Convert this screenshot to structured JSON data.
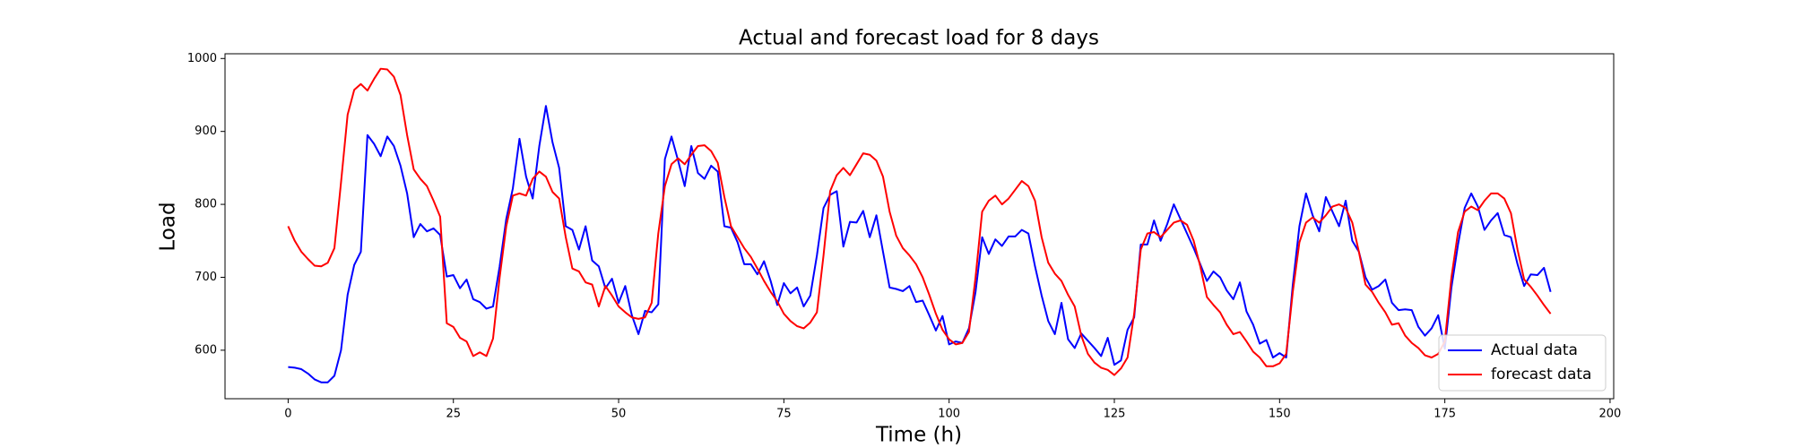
{
  "chart_data": {
    "type": "line",
    "title": "Actual and forecast load for 8 days",
    "xlabel": "Time (h)",
    "ylabel": "Load",
    "xlim": [
      -9.55,
      200.55
    ],
    "ylim": [
      533.5,
      1006.5
    ],
    "xticks": [
      0,
      25,
      50,
      75,
      100,
      125,
      150,
      175,
      200
    ],
    "yticks": [
      600,
      700,
      800,
      900,
      1000
    ],
    "grid": false,
    "legend": "lower right",
    "x": [
      0,
      1,
      2,
      3,
      4,
      5,
      6,
      7,
      8,
      9,
      10,
      11,
      12,
      13,
      14,
      15,
      16,
      17,
      18,
      19,
      20,
      21,
      22,
      23,
      24,
      25,
      26,
      27,
      28,
      29,
      30,
      31,
      32,
      33,
      34,
      35,
      36,
      37,
      38,
      39,
      40,
      41,
      42,
      43,
      44,
      45,
      46,
      47,
      48,
      49,
      50,
      51,
      52,
      53,
      54,
      55,
      56,
      57,
      58,
      59,
      60,
      61,
      62,
      63,
      64,
      65,
      66,
      67,
      68,
      69,
      70,
      71,
      72,
      73,
      74,
      75,
      76,
      77,
      78,
      79,
      80,
      81,
      82,
      83,
      84,
      85,
      86,
      87,
      88,
      89,
      90,
      91,
      92,
      93,
      94,
      95,
      96,
      97,
      98,
      99,
      100,
      101,
      102,
      103,
      104,
      105,
      106,
      107,
      108,
      109,
      110,
      111,
      112,
      113,
      114,
      115,
      116,
      117,
      118,
      119,
      120,
      121,
      122,
      123,
      124,
      125,
      126,
      127,
      128,
      129,
      130,
      131,
      132,
      133,
      134,
      135,
      136,
      137,
      138,
      139,
      140,
      141,
      142,
      143,
      144,
      145,
      146,
      147,
      148,
      149,
      150,
      151,
      152,
      153,
      154,
      155,
      156,
      157,
      158,
      159,
      160,
      161,
      162,
      163,
      164,
      165,
      166,
      167,
      168,
      169,
      170,
      171,
      172,
      173,
      174,
      175,
      176,
      177,
      178,
      179,
      180,
      181,
      182,
      183,
      184,
      185,
      186,
      187,
      188,
      189,
      190,
      191
    ],
    "series": [
      {
        "name": "Actual data",
        "color": "#0000ff",
        "values": [
          577,
          576,
          574,
          568,
          560,
          556,
          556,
          565,
          600,
          676,
          717,
          735,
          895,
          883,
          866,
          893,
          880,
          853,
          815,
          755,
          773,
          763,
          767,
          758,
          701,
          703,
          685,
          697,
          670,
          666,
          657,
          660,
          715,
          780,
          822,
          890,
          838,
          808,
          880,
          935,
          885,
          850,
          770,
          765,
          738,
          770,
          723,
          715,
          685,
          698,
          665,
          688,
          648,
          622,
          654,
          652,
          663,
          862,
          893,
          860,
          825,
          880,
          843,
          835,
          853,
          845,
          770,
          768,
          748,
          718,
          718,
          704,
          722,
          695,
          662,
          692,
          678,
          686,
          660,
          675,
          730,
          795,
          813,
          818,
          742,
          776,
          775,
          791,
          755,
          785,
          735,
          686,
          684,
          681,
          688,
          666,
          668,
          648,
          627,
          647,
          608,
          612,
          610,
          630,
          680,
          755,
          732,
          752,
          743,
          756,
          756,
          765,
          760,
          715,
          675,
          640,
          622,
          665,
          615,
          603,
          623,
          613,
          603,
          592,
          617,
          580,
          586,
          628,
          645,
          745,
          745,
          778,
          750,
          773,
          800,
          780,
          760,
          740,
          718,
          695,
          708,
          700,
          682,
          670,
          693,
          653,
          635,
          609,
          614,
          590,
          596,
          590,
          690,
          770,
          815,
          785,
          763,
          810,
          790,
          770,
          805,
          750,
          735,
          700,
          683,
          688,
          697,
          665,
          655,
          656,
          655,
          632,
          620,
          630,
          648,
          602,
          686,
          745,
          795,
          815,
          797,
          765,
          778,
          788,
          758,
          755,
          718,
          688,
          704,
          703,
          713,
          680
        ]
      },
      {
        "name": "forecast data",
        "color": "#ff0000",
        "values": [
          770,
          750,
          735,
          725,
          716,
          715,
          720,
          740,
          830,
          923,
          957,
          965,
          956,
          972,
          986,
          985,
          975,
          950,
          895,
          848,
          835,
          825,
          805,
          783,
          637,
          632,
          617,
          612,
          592,
          597,
          592,
          616,
          700,
          770,
          812,
          815,
          812,
          835,
          845,
          838,
          817,
          808,
          755,
          712,
          708,
          693,
          690,
          660,
          688,
          675,
          660,
          652,
          645,
          643,
          645,
          665,
          760,
          825,
          855,
          863,
          855,
          868,
          880,
          881,
          873,
          857,
          810,
          770,
          755,
          740,
          728,
          712,
          695,
          680,
          667,
          650,
          640,
          633,
          630,
          638,
          652,
          730,
          818,
          840,
          850,
          840,
          855,
          870,
          868,
          860,
          838,
          790,
          757,
          740,
          730,
          718,
          700,
          676,
          650,
          628,
          615,
          608,
          610,
          625,
          700,
          790,
          805,
          812,
          800,
          808,
          820,
          832,
          825,
          805,
          755,
          720,
          705,
          695,
          676,
          660,
          620,
          595,
          583,
          576,
          573,
          566,
          575,
          590,
          650,
          738,
          760,
          762,
          755,
          765,
          775,
          778,
          772,
          750,
          715,
          673,
          662,
          652,
          635,
          622,
          625,
          612,
          598,
          590,
          578,
          578,
          582,
          595,
          680,
          748,
          775,
          782,
          775,
          785,
          797,
          800,
          795,
          775,
          735,
          690,
          680,
          665,
          652,
          635,
          637,
          620,
          610,
          603,
          593,
          590,
          595,
          612,
          700,
          762,
          790,
          797,
          792,
          805,
          815,
          815,
          808,
          788,
          738,
          697,
          687,
          675,
          662,
          650
        ]
      }
    ]
  }
}
